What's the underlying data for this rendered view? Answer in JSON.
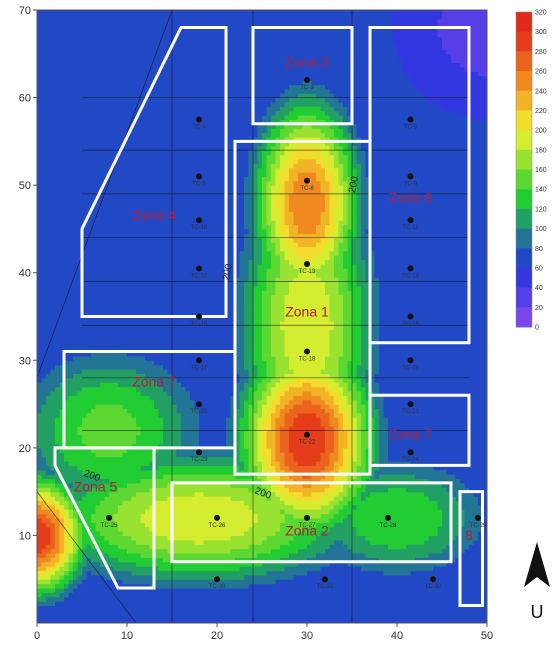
{
  "map": {
    "x_axis": {
      "min": 0,
      "max": 50,
      "ticks": [
        0,
        10,
        20,
        30,
        40,
        50
      ]
    },
    "y_axis": {
      "min": 0,
      "max": 70,
      "ticks": [
        10,
        20,
        30,
        40,
        50,
        60,
        70
      ]
    },
    "colors": {
      "low": "#8a4af0",
      "blue": "#2233dd",
      "green": "#22cc33",
      "yellow": "#f2f230",
      "orange": "#f08a20",
      "high": "#e22a1a",
      "zone_border": "#ffffff"
    },
    "hotspots": [
      {
        "x": 30,
        "y": 21,
        "value": 300,
        "sx": 5.5,
        "sy": 8
      },
      {
        "x": 30,
        "y": 48,
        "value": 260,
        "sx": 4.5,
        "sy": 9
      },
      {
        "x": 30,
        "y": 34,
        "value": 200,
        "sx": 6,
        "sy": 14
      },
      {
        "x": 18,
        "y": 12,
        "value": 200,
        "sx": 14,
        "sy": 6
      },
      {
        "x": 0,
        "y": 10,
        "value": 300,
        "sx": 4,
        "sy": 5
      },
      {
        "x": 8,
        "y": 22,
        "value": 150,
        "sx": 9,
        "sy": 8
      },
      {
        "x": 40,
        "y": 12,
        "value": 140,
        "sx": 9,
        "sy": 6
      }
    ],
    "zones": [
      {
        "name": "Zona 1",
        "polygon": [
          [
            22,
            17
          ],
          [
            37,
            17
          ],
          [
            37,
            55
          ],
          [
            22,
            55
          ]
        ],
        "label_at": [
          30,
          35
        ]
      },
      {
        "name": "Zona 2",
        "polygon": [
          [
            15,
            7
          ],
          [
            46,
            7
          ],
          [
            46,
            16
          ],
          [
            15,
            16
          ]
        ],
        "label_at": [
          30,
          10
        ]
      },
      {
        "name": "Zona 3",
        "polygon": [
          [
            24,
            57
          ],
          [
            35,
            57
          ],
          [
            35,
            68
          ],
          [
            24,
            68
          ]
        ],
        "label_at": [
          30,
          63.5
        ]
      },
      {
        "name": "Zona 4",
        "polygon": [
          [
            5,
            35
          ],
          [
            21,
            35
          ],
          [
            21,
            68
          ],
          [
            16,
            68
          ],
          [
            5,
            45
          ]
        ],
        "label_at": [
          13,
          46
        ]
      },
      {
        "name": "Zona 5",
        "polygon": [
          [
            2,
            20
          ],
          [
            13,
            20
          ],
          [
            13,
            4
          ],
          [
            9,
            4
          ],
          [
            2,
            18
          ]
        ],
        "label_at": [
          6.5,
          15
        ]
      },
      {
        "name": "Zona 6",
        "polygon": [
          [
            37,
            32
          ],
          [
            48,
            32
          ],
          [
            48,
            68
          ],
          [
            37,
            68
          ]
        ],
        "label_at": [
          41.5,
          48
        ]
      },
      {
        "name": "Zona 7",
        "polygon": [
          [
            3,
            20
          ],
          [
            22,
            20
          ],
          [
            22,
            31
          ],
          [
            3,
            31
          ]
        ],
        "label_at": [
          13,
          27
        ]
      },
      {
        "name": "Zona 7",
        "polygon": [
          [
            37,
            18
          ],
          [
            48,
            18
          ],
          [
            48,
            26
          ],
          [
            37,
            26
          ]
        ],
        "label_at": [
          41.5,
          21
        ]
      },
      {
        "name": "8",
        "polygon": [
          [
            47,
            2
          ],
          [
            49.5,
            2
          ],
          [
            49.5,
            15
          ],
          [
            47,
            15
          ]
        ],
        "label_at": [
          48,
          9.5
        ]
      }
    ],
    "wells": [
      {
        "label": "TC-3",
        "x": 30,
        "y": 62
      },
      {
        "label": "TC-4",
        "x": 18,
        "y": 57.5
      },
      {
        "label": "TC-5",
        "x": 41.5,
        "y": 57.5
      },
      {
        "label": "TC-6",
        "x": 18,
        "y": 51
      },
      {
        "label": "TC-8",
        "x": 30,
        "y": 50.5
      },
      {
        "label": "TC-9",
        "x": 41.5,
        "y": 51
      },
      {
        "label": "TC-10",
        "x": 18,
        "y": 46
      },
      {
        "label": "TC-11",
        "x": 41.5,
        "y": 46
      },
      {
        "label": "TC-12",
        "x": 18,
        "y": 40.5
      },
      {
        "label": "TC-13",
        "x": 30,
        "y": 41
      },
      {
        "label": "TC-14",
        "x": 41.5,
        "y": 40.5
      },
      {
        "label": "TC-15",
        "x": 18,
        "y": 35
      },
      {
        "label": "TC-16",
        "x": 41.5,
        "y": 35
      },
      {
        "label": "TC-17",
        "x": 18,
        "y": 30
      },
      {
        "label": "TC-18",
        "x": 30,
        "y": 31
      },
      {
        "label": "TC-19",
        "x": 41.5,
        "y": 30
      },
      {
        "label": "TC-20",
        "x": 18,
        "y": 25
      },
      {
        "label": "TC-21",
        "x": 41.5,
        "y": 25
      },
      {
        "label": "TC-22",
        "x": 30,
        "y": 21.5
      },
      {
        "label": "TC-23",
        "x": 18,
        "y": 19.5
      },
      {
        "label": "TC-24",
        "x": 41.5,
        "y": 19.5
      },
      {
        "label": "TC-25",
        "x": 8,
        "y": 12
      },
      {
        "label": "TC-26",
        "x": 20,
        "y": 12
      },
      {
        "label": "TC-27",
        "x": 30,
        "y": 12
      },
      {
        "label": "TC-28",
        "x": 39,
        "y": 12
      },
      {
        "label": "TC-29",
        "x": 49,
        "y": 12
      },
      {
        "label": "TC-30",
        "x": 20,
        "y": 5
      },
      {
        "label": "TC-31",
        "x": 32,
        "y": 5
      },
      {
        "label": "TC-32",
        "x": 44,
        "y": 5
      }
    ],
    "contour_labels": [
      {
        "text": "200",
        "x": 35.5,
        "y": 50,
        "angle": -80
      },
      {
        "text": "200",
        "x": 21.5,
        "y": 40,
        "angle": -80
      },
      {
        "text": "200",
        "x": 25,
        "y": 14.5,
        "angle": 20
      },
      {
        "text": "200",
        "x": 6,
        "y": 16.5,
        "angle": 20
      }
    ],
    "legend": {
      "values": [
        0,
        20,
        40,
        60,
        80,
        100,
        120,
        140,
        160,
        180,
        200,
        220,
        240,
        260,
        280,
        300,
        320
      ]
    },
    "north": {
      "label": "U"
    }
  }
}
